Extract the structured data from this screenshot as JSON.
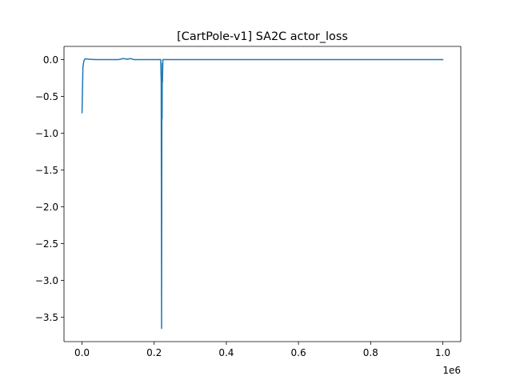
{
  "chart_data": {
    "type": "line",
    "title": "[CartPole-v1] SA2C actor_loss",
    "xlabel": "",
    "ylabel": "",
    "x_offset_label": "1e6",
    "xlim": [
      -50000,
      1050000
    ],
    "ylim": [
      -3.83,
      0.18
    ],
    "x_ticks": [
      0,
      200000,
      400000,
      600000,
      800000,
      1000000
    ],
    "x_tick_labels": [
      "0.0",
      "0.2",
      "0.4",
      "0.6",
      "0.8",
      "1.0"
    ],
    "y_ticks": [
      0.0,
      -0.5,
      -1.0,
      -1.5,
      -2.0,
      -2.5,
      -3.0,
      -3.5
    ],
    "y_tick_labels": [
      "0.0",
      "−0.5",
      "−1.0",
      "−1.5",
      "−2.0",
      "−2.5",
      "−3.0",
      "−3.5"
    ],
    "grid": false,
    "series": [
      {
        "color": "#1f77b4",
        "x": [
          0,
          2500,
          5000,
          8000,
          12000,
          20000,
          40000,
          60000,
          80000,
          100000,
          110000,
          115000,
          120000,
          125000,
          130000,
          135000,
          140000,
          145000,
          150000,
          180000,
          218000,
          219500,
          220500,
          221000,
          221500,
          222000,
          222500,
          223000,
          224000,
          226000,
          300000,
          400000,
          500000,
          600000,
          700000,
          800000,
          900000,
          1000000
        ],
        "y": [
          -0.72,
          -0.1,
          -0.02,
          0.01,
          0.01,
          0.005,
          0.0,
          0.0,
          0.0,
          0.0,
          0.01,
          0.015,
          0.01,
          0.005,
          0.01,
          0.015,
          0.005,
          0.0,
          0.0,
          0.0,
          0.0,
          -0.3,
          -3.65,
          -1.5,
          -0.2,
          -0.8,
          -0.05,
          -0.3,
          0.0,
          0.0,
          0.0,
          0.0,
          0.0,
          0.0,
          0.0,
          0.0,
          0.0,
          0.0
        ]
      }
    ]
  }
}
